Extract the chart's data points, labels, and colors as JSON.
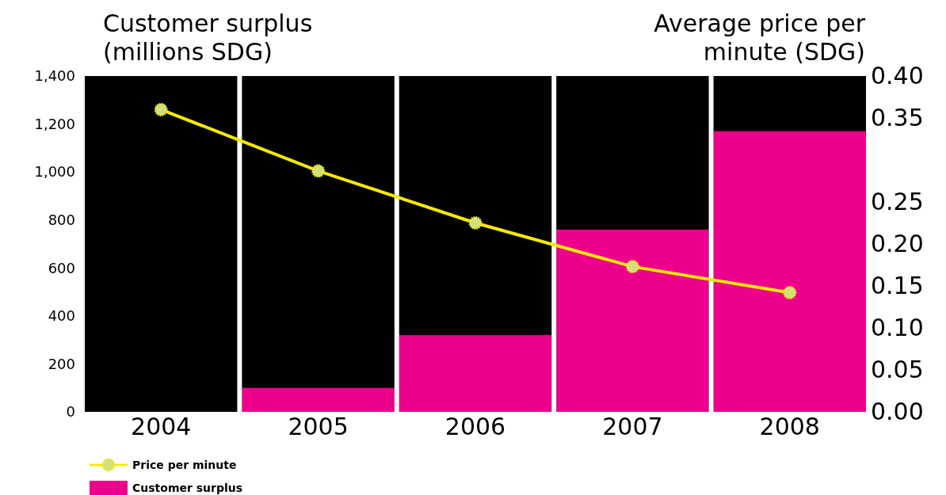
{
  "chart_data": {
    "type": "bar",
    "ylabel": "Customer surplus (millions SDG)",
    "y2label": "Average price per minute (SDG)",
    "categories": [
      "2004",
      "2005",
      "2006",
      "2007",
      "2008"
    ],
    "series": [
      {
        "name": "Customer surplus",
        "color": "#ec008c",
        "values": [
          0,
          100,
          320,
          760,
          1170
        ]
      },
      {
        "name": "Price per minute",
        "type": "line",
        "axis": "y2",
        "color": "#f5e900",
        "values": [
          0.36,
          0.287,
          0.225,
          0.173,
          0.142
        ]
      }
    ],
    "ylim": [
      0,
      1400
    ],
    "yticks": [
      {
        "value": 0,
        "label": "0"
      },
      {
        "value": 200,
        "label": "200"
      },
      {
        "value": 400,
        "label": "400"
      },
      {
        "value": 600,
        "label": "600"
      },
      {
        "value": 800,
        "label": "800"
      },
      {
        "value": 1000,
        "label": "1,000"
      },
      {
        "value": 1200,
        "label": "1,200"
      },
      {
        "value": 1400,
        "label": "1,400"
      }
    ],
    "y2lim": [
      0,
      0.4
    ],
    "y2ticks": [
      {
        "value": 0,
        "label": "0.00"
      },
      {
        "value": 0.05,
        "label": "0.05"
      },
      {
        "value": 0.1,
        "label": "0.10"
      },
      {
        "value": 0.15,
        "label": "0.15"
      },
      {
        "value": 0.2,
        "label": "0.20"
      },
      {
        "value": 0.25,
        "label": "0.25"
      },
      {
        "value": 0.35,
        "label": "0.35"
      },
      {
        "value": 0.4,
        "label": "0.40"
      }
    ],
    "marker": "circle",
    "legend": "bottom left"
  }
}
